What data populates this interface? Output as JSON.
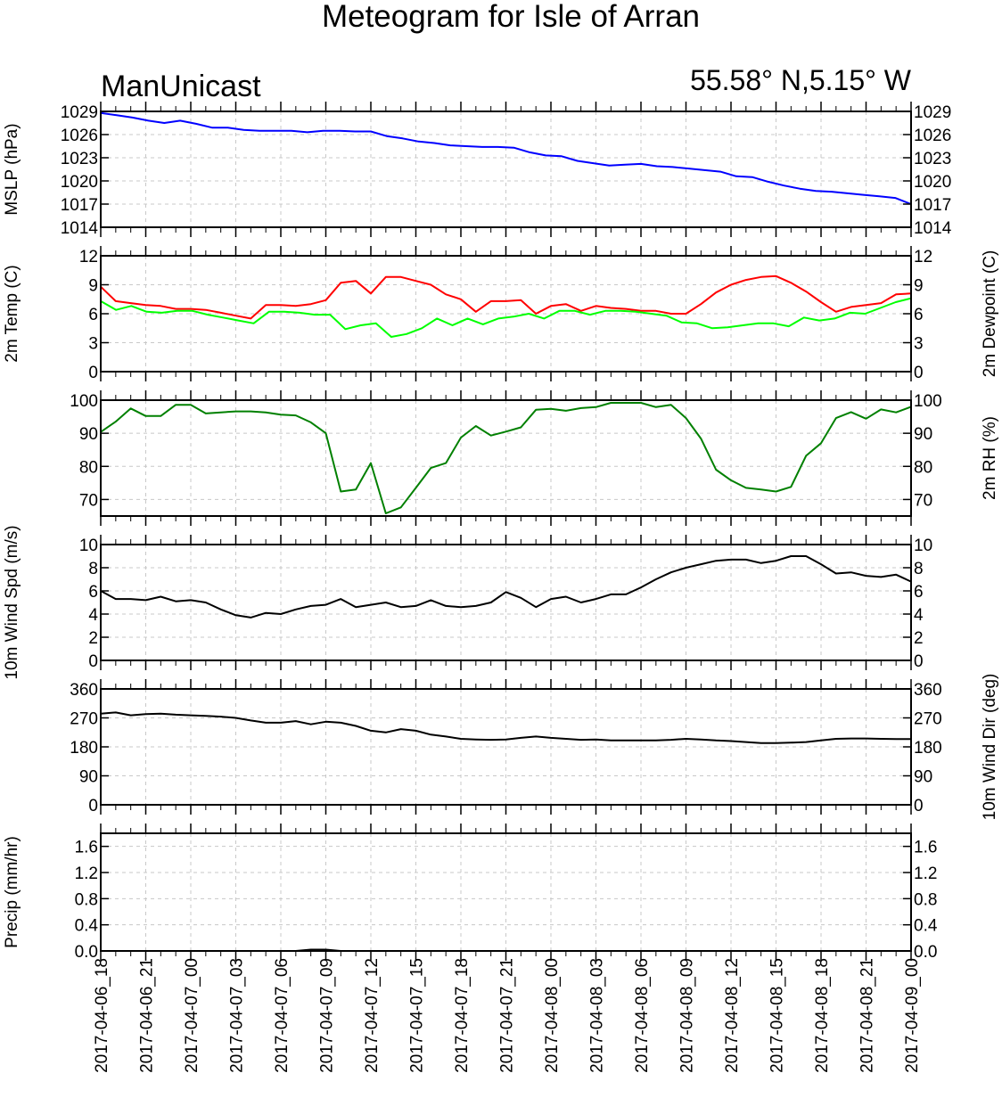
{
  "header": {
    "title": "Meteogram for Isle of Arran",
    "model": "ManUnicast",
    "location": "55.58° N,5.15° W"
  },
  "time_labels": [
    "2017-04-06_18",
    "2017-04-06_21",
    "2017-04-07_00",
    "2017-04-07_03",
    "2017-04-07_06",
    "2017-04-07_09",
    "2017-04-07_12",
    "2017-04-07_15",
    "2017-04-07_18",
    "2017-04-07_21",
    "2017-04-08_00",
    "2017-04-08_03",
    "2017-04-08_06",
    "2017-04-08_09",
    "2017-04-08_12",
    "2017-04-08_15",
    "2017-04-08_18",
    "2017-04-08_21",
    "2017-04-09_00"
  ],
  "chart_data": [
    {
      "type": "line",
      "name": "mslp",
      "ylabel": "MSLP (hPa)",
      "ylabel_right": "",
      "ylim": [
        1014,
        1029
      ],
      "yticks": [
        1014,
        1017,
        1020,
        1023,
        1026,
        1029
      ],
      "tick_labels": [
        "1014",
        "1017",
        "1020",
        "1023",
        "1026",
        "1029"
      ],
      "series": [
        {
          "color": "#0000ff",
          "values": [
            1028.8,
            1028.5,
            1028.2,
            1027.8,
            1027.5,
            1027.8,
            1027.4,
            1026.9,
            1026.9,
            1026.6,
            1026.5,
            1026.5,
            1026.5,
            1026.3,
            1026.5,
            1026.5,
            1026.4,
            1026.4,
            1025.8,
            1025.5,
            1025.1,
            1024.9,
            1024.6,
            1024.5,
            1024.4,
            1024.4,
            1024.3,
            1023.7,
            1023.3,
            1023.2,
            1022.6,
            1022.3,
            1022.0,
            1022.1,
            1022.2,
            1021.9,
            1021.8,
            1021.6,
            1021.4,
            1021.2,
            1020.6,
            1020.5,
            1019.9,
            1019.4,
            1019.0,
            1018.7,
            1018.6,
            1018.4,
            1018.2,
            1018.0,
            1017.8,
            1017.0
          ]
        }
      ]
    },
    {
      "type": "line",
      "name": "temperature",
      "ylabel": "2m Temp (C)",
      "ylabel_right": "2m Dewpoint (C)",
      "ylim": [
        0,
        12
      ],
      "yticks": [
        0,
        3,
        6,
        9,
        12
      ],
      "tick_labels": [
        "0",
        "3",
        "6",
        "9",
        "12"
      ],
      "series": [
        {
          "color": "#ff0000",
          "values": [
            8.8,
            7.3,
            7.1,
            6.9,
            6.8,
            6.5,
            6.5,
            6.4,
            6.1,
            5.8,
            5.5,
            6.9,
            6.9,
            6.8,
            7.0,
            7.4,
            9.2,
            9.4,
            8.1,
            9.8,
            9.8,
            9.4,
            9.0,
            8.0,
            7.5,
            6.2,
            7.3,
            7.3,
            7.4,
            6.0,
            6.8,
            7.0,
            6.3,
            6.8,
            6.6,
            6.5,
            6.3,
            6.3,
            6.0,
            6.0,
            7.0,
            8.2,
            9.0,
            9.5,
            9.8,
            9.9,
            9.2,
            8.3,
            7.2,
            6.2,
            6.7,
            6.9,
            7.1,
            8.0,
            8.1
          ]
        },
        {
          "color": "#00ff00",
          "values": [
            7.3,
            6.4,
            6.8,
            6.2,
            6.1,
            6.3,
            6.3,
            5.9,
            5.6,
            5.3,
            5.0,
            6.2,
            6.2,
            6.1,
            5.9,
            5.9,
            4.4,
            4.8,
            5.0,
            3.6,
            3.9,
            4.5,
            5.5,
            4.8,
            5.5,
            4.9,
            5.5,
            5.7,
            6.0,
            5.5,
            6.3,
            6.3,
            5.9,
            6.3,
            6.3,
            6.2,
            6.0,
            5.8,
            5.1,
            5.0,
            4.5,
            4.6,
            4.8,
            5.0,
            5.0,
            4.7,
            5.6,
            5.3,
            5.5,
            6.1,
            6.0,
            6.6,
            7.2,
            7.6
          ]
        }
      ]
    },
    {
      "type": "line",
      "name": "rh",
      "ylabel": "",
      "ylabel_right": "2m RH (%)",
      "ylim": [
        65,
        100
      ],
      "yticks": [
        70,
        80,
        90,
        100
      ],
      "tick_labels": [
        "70",
        "80",
        "90",
        "100"
      ],
      "series": [
        {
          "color": "#008000",
          "values": [
            90.4,
            93.5,
            97.5,
            95.2,
            95.2,
            98.6,
            98.6,
            96.0,
            96.3,
            96.6,
            96.6,
            96.3,
            95.6,
            95.4,
            93.3,
            90.0,
            72.4,
            73.0,
            81.0,
            65.8,
            67.6,
            73.5,
            79.5,
            81.0,
            88.7,
            92.2,
            89.3,
            90.5,
            91.8,
            97.1,
            97.4,
            96.8,
            97.6,
            97.9,
            99.2,
            99.2,
            99.2,
            97.9,
            98.6,
            94.6,
            88.4,
            79.0,
            75.8,
            73.5,
            73.0,
            72.4,
            73.8,
            83.2,
            87.0,
            94.6,
            96.4,
            94.4,
            97.2,
            96.3,
            98.0
          ]
        }
      ]
    },
    {
      "type": "line",
      "name": "wind_speed",
      "ylabel": "10m Wind Spd (m/s)",
      "ylabel_right": "",
      "ylim": [
        0,
        10
      ],
      "yticks": [
        0,
        2,
        4,
        6,
        8,
        10
      ],
      "tick_labels": [
        "0",
        "2",
        "4",
        "6",
        "8",
        "10"
      ],
      "series": [
        {
          "color": "#000000",
          "values": [
            6.0,
            5.3,
            5.3,
            5.2,
            5.5,
            5.1,
            5.2,
            5.0,
            4.4,
            3.9,
            3.7,
            4.1,
            4.0,
            4.4,
            4.7,
            4.8,
            5.3,
            4.6,
            4.8,
            5.0,
            4.6,
            4.7,
            5.2,
            4.7,
            4.6,
            4.7,
            5.0,
            5.9,
            5.4,
            4.6,
            5.3,
            5.5,
            5.0,
            5.3,
            5.7,
            5.7,
            6.3,
            7.0,
            7.6,
            8.0,
            8.3,
            8.6,
            8.7,
            8.7,
            8.4,
            8.6,
            9.0,
            9.0,
            8.3,
            7.5,
            7.6,
            7.3,
            7.2,
            7.4,
            6.8
          ]
        }
      ]
    },
    {
      "type": "line",
      "name": "wind_direction",
      "ylabel": "",
      "ylabel_right": "10m Wind Dir (deg)",
      "ylim": [
        0,
        360
      ],
      "yticks": [
        0,
        90,
        180,
        270,
        360
      ],
      "tick_labels": [
        "0",
        "90",
        "180",
        "270",
        "360"
      ],
      "series": [
        {
          "color": "#000000",
          "values": [
            283,
            287,
            278,
            282,
            283,
            280,
            278,
            276,
            274,
            270,
            262,
            255,
            255,
            260,
            250,
            258,
            255,
            245,
            230,
            225,
            235,
            230,
            218,
            212,
            205,
            203,
            202,
            203,
            208,
            212,
            208,
            205,
            202,
            203,
            200,
            200,
            200,
            200,
            202,
            205,
            203,
            200,
            198,
            195,
            192,
            192,
            193,
            195,
            200,
            205,
            206,
            206,
            205,
            204,
            204
          ]
        }
      ]
    },
    {
      "type": "line",
      "name": "precipitation",
      "ylabel": "Precip (mm/hr)",
      "ylabel_right": "",
      "ylim": [
        0,
        1.8
      ],
      "yticks": [
        0,
        0.4,
        0.8,
        1.2,
        1.6
      ],
      "tick_labels": [
        "0.0",
        "0.4",
        "0.8",
        "1.2",
        "1.6"
      ],
      "series": [
        {
          "color": "#000000",
          "values": [
            0,
            0,
            0,
            0,
            0,
            0,
            0,
            0,
            0,
            0,
            0,
            0,
            0,
            0,
            0.02,
            0.02,
            0,
            0,
            0,
            0,
            0,
            0,
            0,
            0,
            0,
            0,
            0,
            0,
            0,
            0,
            0,
            0,
            0,
            0,
            0,
            0,
            0,
            0,
            0,
            0,
            0,
            0,
            0,
            0,
            0,
            0,
            0,
            0,
            0,
            0,
            0,
            0,
            0,
            0,
            0
          ]
        }
      ]
    }
  ]
}
